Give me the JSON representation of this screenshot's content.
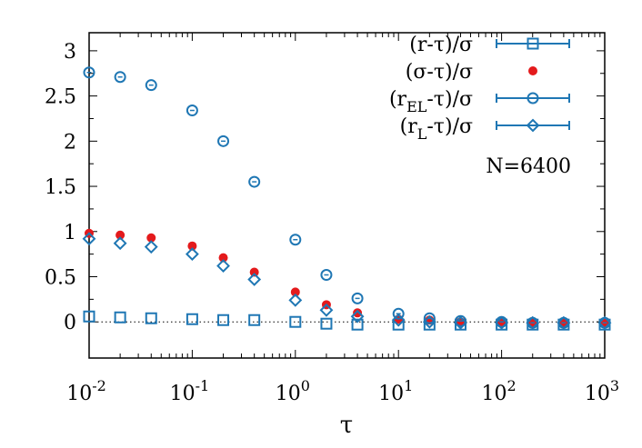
{
  "chart_data": {
    "type": "scatter",
    "title": "",
    "xlabel": "τ",
    "ylabel": "",
    "xscale": "log",
    "xlim": [
      0.01,
      1000
    ],
    "ylim": [
      -0.4,
      3.2
    ],
    "grid": false,
    "zero_line": "dotted",
    "legend_position": "top-right",
    "annotation": "N=6400",
    "x_ticks": [
      {
        "value": 0.01,
        "base": "10",
        "exp": "-2"
      },
      {
        "value": 0.1,
        "base": "10",
        "exp": "-1"
      },
      {
        "value": 1,
        "base": "10",
        "exp": "0"
      },
      {
        "value": 10,
        "base": "10",
        "exp": "1"
      },
      {
        "value": 100,
        "base": "10",
        "exp": "2"
      },
      {
        "value": 1000,
        "base": "10",
        "exp": "3"
      }
    ],
    "y_ticks": [
      {
        "value": 0,
        "label": "0"
      },
      {
        "value": 0.5,
        "label": "0.5"
      },
      {
        "value": 1,
        "label": "1"
      },
      {
        "value": 1.5,
        "label": "1.5"
      },
      {
        "value": 2,
        "label": "2"
      },
      {
        "value": 2.5,
        "label": "2.5"
      },
      {
        "value": 3,
        "label": "3"
      }
    ],
    "x": [
      0.01,
      0.02,
      0.04,
      0.1,
      0.2,
      0.4,
      1,
      2,
      4,
      10,
      20,
      40,
      100,
      200,
      400,
      1000
    ],
    "series": [
      {
        "name": "(r-τ)/σ",
        "label_main": "(r-τ)/σ",
        "label_sub": "",
        "label_tail": "",
        "marker": "square",
        "color": "#1f77b4",
        "values": [
          0.06,
          0.05,
          0.04,
          0.03,
          0.02,
          0.02,
          0.0,
          -0.02,
          -0.03,
          -0.03,
          -0.03,
          -0.03,
          -0.03,
          -0.03,
          -0.03,
          -0.03
        ]
      },
      {
        "name": "(σ-τ)/σ",
        "label_main": "(σ-τ)/σ",
        "label_sub": "",
        "label_tail": "",
        "marker": "filled-circle",
        "color": "#e41a1c",
        "values": [
          0.98,
          0.96,
          0.93,
          0.84,
          0.71,
          0.55,
          0.33,
          0.19,
          0.1,
          0.03,
          0.02,
          0.0,
          -0.01,
          -0.01,
          -0.01,
          -0.01
        ]
      },
      {
        "name": "(rEL-τ)/σ",
        "label_main": "(r",
        "label_sub": "EL",
        "label_tail": "-τ)/σ",
        "marker": "open-circle",
        "color": "#1f77b4",
        "values": [
          2.76,
          2.71,
          2.62,
          2.34,
          2.0,
          1.55,
          0.91,
          0.52,
          0.26,
          0.09,
          0.04,
          0.01,
          0.0,
          -0.01,
          -0.01,
          -0.01
        ]
      },
      {
        "name": "(rL-τ)/σ",
        "label_main": "(r",
        "label_sub": "L",
        "label_tail": "-τ)/σ",
        "marker": "diamond",
        "color": "#1f77b4",
        "values": [
          0.92,
          0.87,
          0.83,
          0.75,
          0.62,
          0.47,
          0.24,
          0.13,
          0.06,
          0.02,
          0.0,
          -0.01,
          -0.01,
          -0.01,
          -0.01,
          -0.01
        ]
      }
    ]
  }
}
